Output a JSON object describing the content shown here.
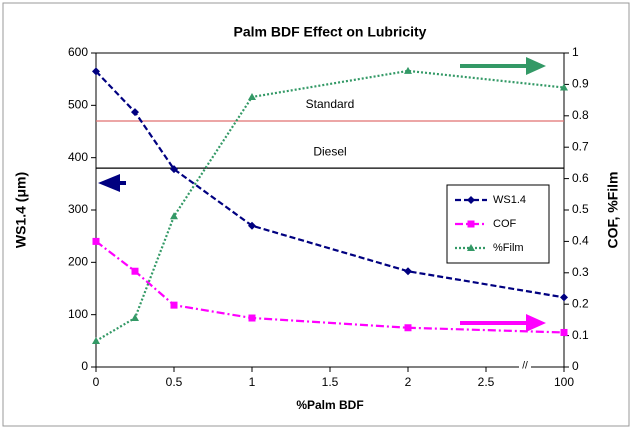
{
  "chart_data": {
    "type": "line",
    "title": "Palm BDF Effect on Lubricity",
    "x_label": "%Palm BDF",
    "y_label": "WS1.4 (μm)",
    "y2_label": "COF, %Film",
    "x_break": "//",
    "x": [
      0,
      0.25,
      0.5,
      1,
      2,
      100
    ],
    "series": [
      {
        "name": "WS1.4",
        "color": "#000080",
        "marker": "diamond",
        "values": [
          565,
          487,
          378,
          270,
          183,
          133
        ]
      },
      {
        "name": "COF",
        "color": "#ff00ff",
        "marker": "square",
        "axis": "y2",
        "values": [
          0.4,
          0.305,
          0.197,
          0.156,
          0.125,
          0.11
        ]
      },
      {
        "name": "%Film",
        "color": "#339966",
        "marker": "triangle",
        "axis": "y2",
        "values": [
          0.083,
          0.156,
          0.48,
          0.86,
          0.943,
          0.89
        ]
      }
    ],
    "reference_lines": [
      {
        "label": "Standard",
        "value": 470,
        "color": "#e07070"
      },
      {
        "label": "Diesel",
        "value": 380,
        "color": "#000000"
      }
    ],
    "xlim": [
      0,
      100
    ],
    "xticks": [
      0,
      0.5,
      1,
      1.5,
      2,
      2.5,
      100
    ],
    "ylim": [
      0,
      600
    ],
    "yticks": [
      0,
      100,
      200,
      300,
      400,
      500,
      600
    ],
    "y2lim": [
      0,
      1
    ],
    "y2ticks": [
      0,
      0.1,
      0.2,
      0.3,
      0.4,
      0.5,
      0.6,
      0.7,
      0.8,
      0.9,
      1
    ],
    "grid": false,
    "legend": "right"
  }
}
